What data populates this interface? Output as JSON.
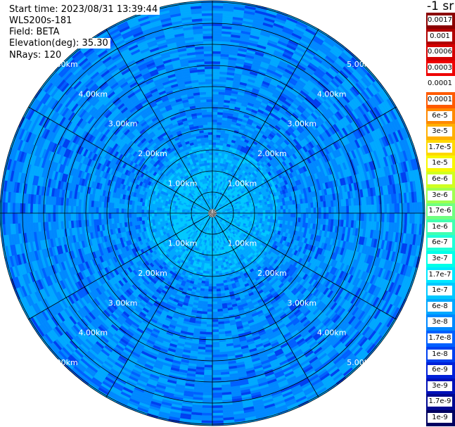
{
  "header": {
    "start_time": "Start time: 2023/08/31 13:39:44",
    "instrument": "WLS200s-181",
    "field": "Field: BETA",
    "elevation": "Elevation(deg): 35.30",
    "nrays": "NRays: 120"
  },
  "legend": {
    "unit": "-1 sr",
    "entries": [
      {
        "label": "0.0017",
        "color": "#8b0000"
      },
      {
        "label": "0.001",
        "color": "#b00000"
      },
      {
        "label": "0.0006",
        "color": "#d40000"
      },
      {
        "label": "0.0003",
        "color": "#ee0000"
      },
      {
        "label": "0.00017",
        "color": "#ffffff"
      },
      {
        "label": "0.0001",
        "color": "#ff5a00"
      },
      {
        "label": "6e-5",
        "color": "#ff8800"
      },
      {
        "label": "3e-5",
        "color": "#ffb000"
      },
      {
        "label": "1.7e-5",
        "color": "#ffd800"
      },
      {
        "label": "1e-5",
        "color": "#f8f800"
      },
      {
        "label": "6e-6",
        "color": "#d0ff20"
      },
      {
        "label": "3e-6",
        "color": "#a0ff50"
      },
      {
        "label": "1.7e-6",
        "color": "#70ff80"
      },
      {
        "label": "1e-6",
        "color": "#40ffb0"
      },
      {
        "label": "6e-7",
        "color": "#20ffd8"
      },
      {
        "label": "3e-7",
        "color": "#00ffe8"
      },
      {
        "label": "1.7e-7",
        "color": "#00e8ff"
      },
      {
        "label": "1e-7",
        "color": "#00c8ff"
      },
      {
        "label": "6e-8",
        "color": "#00a8ff"
      },
      {
        "label": "3e-8",
        "color": "#0088ff"
      },
      {
        "label": "1.7e-8",
        "color": "#0060ff"
      },
      {
        "label": "1e-8",
        "color": "#0040f0"
      },
      {
        "label": "6e-9",
        "color": "#0020d8"
      },
      {
        "label": "3e-9",
        "color": "#0010b8"
      },
      {
        "label": "1.7e-9",
        "color": "#000890"
      },
      {
        "label": "1e-9",
        "color": "#000060"
      }
    ]
  },
  "chart_data": {
    "type": "heatmap",
    "projection": "polar-ppi",
    "field": "BETA",
    "elevation_deg": 35.3,
    "n_rays": 120,
    "range_km": [
      0,
      5.6
    ],
    "range_ring_labels": [
      "1.00km",
      "2.00km",
      "3.00km",
      "4.00km",
      "5.00km"
    ],
    "range_rings_km": [
      0.5,
      1,
      1.5,
      2,
      2.5,
      3,
      3.5,
      4,
      4.5,
      5
    ],
    "azimuth_spokes_deg": [
      0,
      30,
      60,
      90,
      120,
      150,
      180,
      210,
      240,
      270,
      300,
      330
    ],
    "dominant_values": [
      "6e-8",
      "3e-8",
      "1.7e-8",
      "1e-8"
    ],
    "near_range_values": [
      "1e-7",
      "6e-8"
    ],
    "grid": true,
    "legend_placement": "right"
  }
}
